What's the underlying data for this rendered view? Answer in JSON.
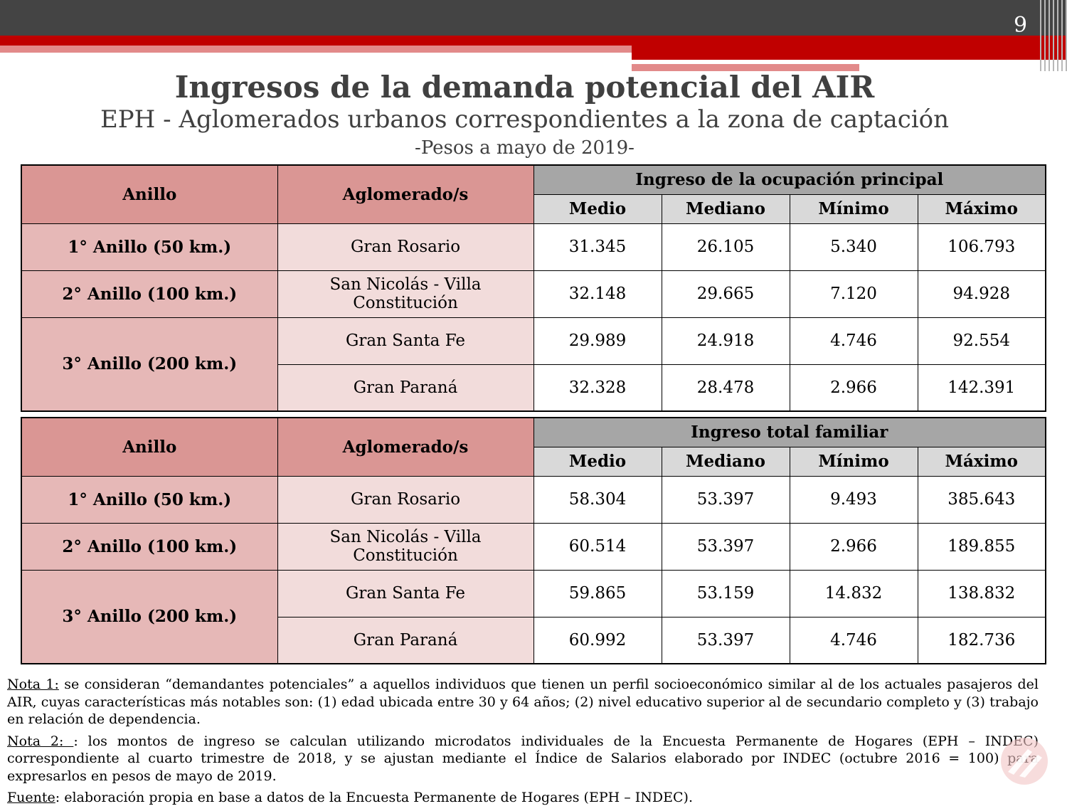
{
  "page": {
    "number": "9"
  },
  "header": {
    "title": "Ingresos de la demanda potencial del AIR",
    "subtitle": "EPH - Aglomerados urbanos correspondientes a la zona de captación",
    "units_note": "-Pesos a mayo de 2019-"
  },
  "colors": {
    "dark_bar": "#444444",
    "accent_red": "#c00000",
    "header_rose": "#da9694",
    "ring_rose": "#e6b8b7",
    "aglo_rose": "#f2dcdb",
    "header_gray": "#a6a6a6",
    "subheader_gray": "#d9d9d9"
  },
  "tables": [
    {
      "col_anillo": "Anillo",
      "col_aglomerado": "Aglomerado/s",
      "group_label": "Ingreso de la ocupación principal",
      "stats": [
        "Medio",
        "Mediano",
        "Mínimo",
        "Máximo"
      ],
      "rings": [
        "1° Anillo (50 km.)",
        "2° Anillo (100 km.)",
        "3° Anillo (200 km.)"
      ],
      "rows": [
        {
          "aglomerado": "Gran Rosario",
          "values": [
            "31.345",
            "26.105",
            "5.340",
            "106.793"
          ]
        },
        {
          "aglomerado": "San Nicolás - Villa Constitución",
          "values": [
            "32.148",
            "29.665",
            "7.120",
            "94.928"
          ]
        },
        {
          "aglomerado": "Gran Santa Fe",
          "values": [
            "29.989",
            "24.918",
            "4.746",
            "92.554"
          ]
        },
        {
          "aglomerado": "Gran Paraná",
          "values": [
            "32.328",
            "28.478",
            "2.966",
            "142.391"
          ]
        }
      ]
    },
    {
      "col_anillo": "Anillo",
      "col_aglomerado": "Aglomerado/s",
      "group_label": "Ingreso total familiar",
      "stats": [
        "Medio",
        "Mediano",
        "Mínimo",
        "Máximo"
      ],
      "rings": [
        "1° Anillo (50 km.)",
        "2° Anillo (100 km.)",
        "3° Anillo (200 km.)"
      ],
      "rows": [
        {
          "aglomerado": "Gran Rosario",
          "values": [
            "58.304",
            "53.397",
            "9.493",
            "385.643"
          ]
        },
        {
          "aglomerado": "San Nicolás - Villa Constitución",
          "values": [
            "60.514",
            "53.397",
            "2.966",
            "189.855"
          ]
        },
        {
          "aglomerado": "Gran Santa Fe",
          "values": [
            "59.865",
            "53.159",
            "14.832",
            "138.832"
          ]
        },
        {
          "aglomerado": "Gran Paraná",
          "values": [
            "60.992",
            "53.397",
            "4.746",
            "182.736"
          ]
        }
      ]
    }
  ],
  "notes": {
    "nota1_label": "Nota 1:",
    "nota1_text": " se consideran “demandantes potenciales” a aquellos individuos que tienen un perfil socioeconómico similar al de los actuales pasajeros del AIR, cuyas características más notables son: (1) edad ubicada entre 30 y 64 años; (2) nivel educativo superior al de secundario completo y (3) trabajo en relación de dependencia.",
    "nota2_label": "Nota 2: ",
    "nota2_text": ": los montos de ingreso se calculan utilizando microdatos individuales de la Encuesta Permanente de Hogares (EPH – INDEC) correspondiente al cuarto trimestre de 2018, y se ajustan mediante el Índice de Salarios elaborado por INDEC (octubre 2016 = 100) para expresarlos en pesos de mayo de 2019.",
    "fuente_label": "Fuente",
    "fuente_text": ": elaboración propia en base a datos de la Encuesta Permanente de Hogares (EPH – INDEC)."
  }
}
